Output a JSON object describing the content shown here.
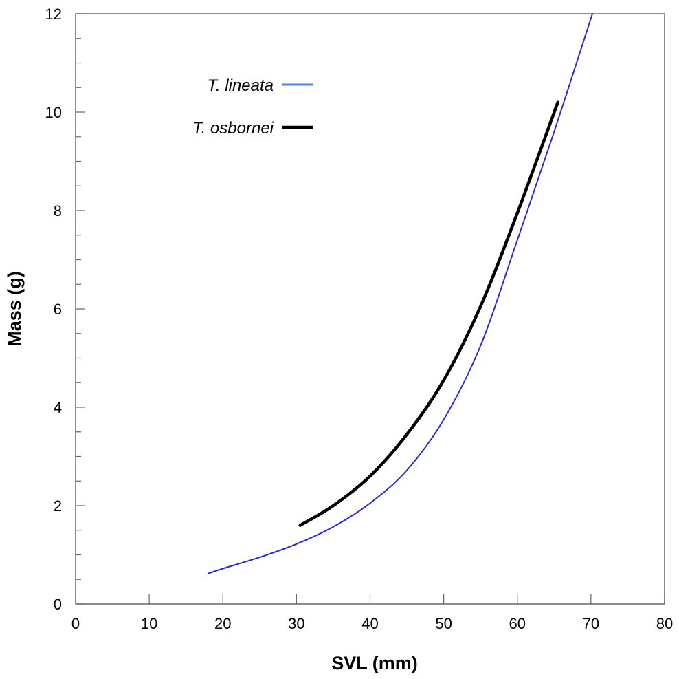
{
  "chart_data": {
    "type": "line",
    "title": "",
    "xlabel": "SVL (mm)",
    "ylabel": "Mass (g)",
    "xlim": [
      0,
      80
    ],
    "ylim": [
      0,
      12
    ],
    "xticks": [
      0,
      10,
      20,
      30,
      40,
      50,
      60,
      70,
      80
    ],
    "yticks": [
      0,
      2,
      4,
      6,
      8,
      10,
      12
    ],
    "xtick_labels": [
      "0",
      "10",
      "20",
      "30",
      "40",
      "50",
      "60",
      "70",
      "80"
    ],
    "ytick_labels": [
      "0",
      "2",
      "4",
      "6",
      "8",
      "10",
      "12"
    ],
    "grid": false,
    "legend_position": "top-left",
    "series": [
      {
        "name": "T. lineata",
        "color": "#2a2ad2",
        "legend_color": "#4a7fe0",
        "x": [
          18,
          20,
          25,
          30,
          35,
          40,
          45,
          50,
          55,
          60,
          65,
          70.2
        ],
        "values": [
          0.62,
          0.72,
          0.95,
          1.22,
          1.57,
          2.05,
          2.72,
          3.75,
          5.25,
          7.4,
          9.6,
          12.0
        ]
      },
      {
        "name": "T. osbornei",
        "color": "#000000",
        "legend_color": "#000000",
        "x": [
          30.5,
          35,
          40,
          45,
          50,
          55,
          60,
          65.5
        ],
        "values": [
          1.6,
          2.0,
          2.6,
          3.45,
          4.55,
          6.05,
          7.95,
          10.2
        ]
      }
    ]
  }
}
